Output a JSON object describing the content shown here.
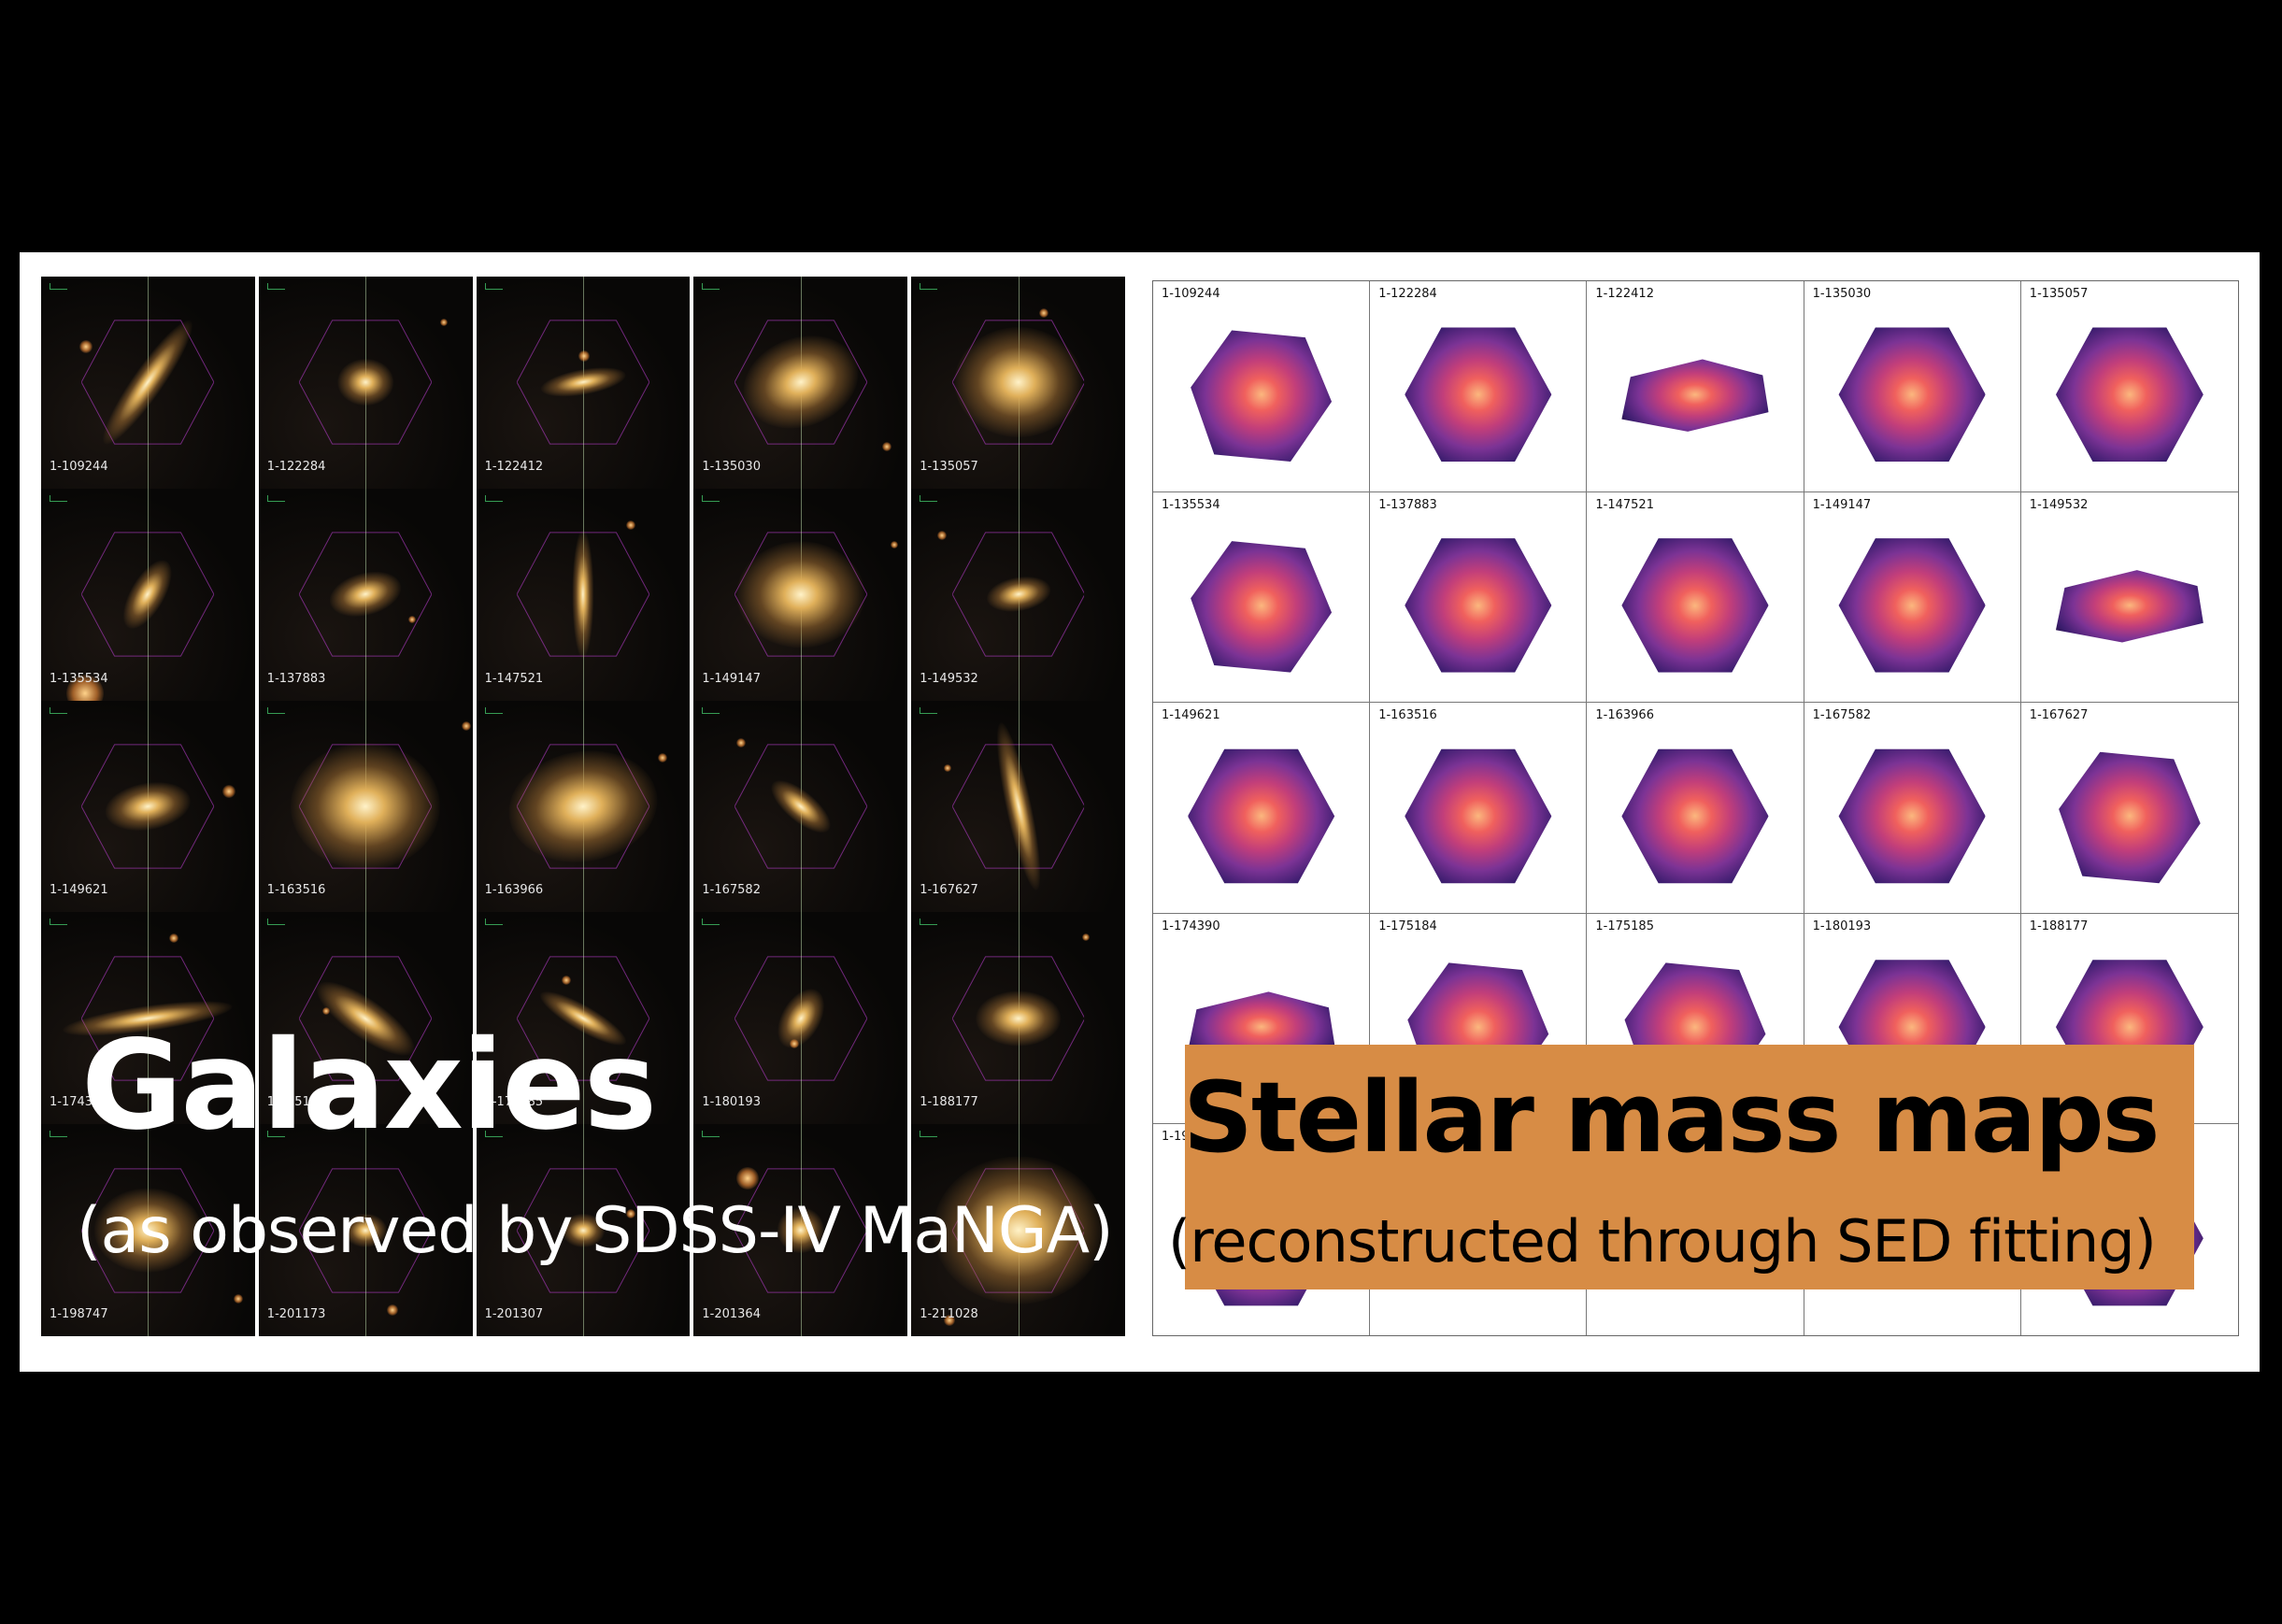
{
  "left_panel": {
    "title": "Galaxies",
    "subtitle": "(as observed by SDSS-IV MaNGA)",
    "galaxy_ids": [
      "1-109244",
      "1-122284",
      "1-122412",
      "1-135030",
      "1-135057",
      "1-135534",
      "1-137883",
      "1-147521",
      "1-149147",
      "1-149532",
      "1-149621",
      "1-163516",
      "1-163966",
      "1-167582",
      "1-167627",
      "1-174390",
      "1-175184",
      "1-175185",
      "1-180193",
      "1-188177",
      "1-198747",
      "1-201173",
      "1-201307",
      "1-201364",
      "1-211028"
    ]
  },
  "right_panel": {
    "title": "Stellar mass maps",
    "subtitle": "(reconstructed through SED fitting)",
    "map_ids": [
      "1-109244",
      "1-122284",
      "1-122412",
      "1-135030",
      "1-135057",
      "1-135534",
      "1-137883",
      "1-147521",
      "1-149147",
      "1-149532",
      "1-149621",
      "1-163516",
      "1-163966",
      "1-167582",
      "1-167627",
      "1-174390",
      "1-175184",
      "1-175185",
      "1-180193",
      "1-188177",
      "1-198747",
      "",
      "",
      "",
      ""
    ]
  },
  "colors": {
    "background": "#000000",
    "slide": "#ffffff",
    "highlight_box": "#d78c45",
    "colormap": "magma"
  }
}
